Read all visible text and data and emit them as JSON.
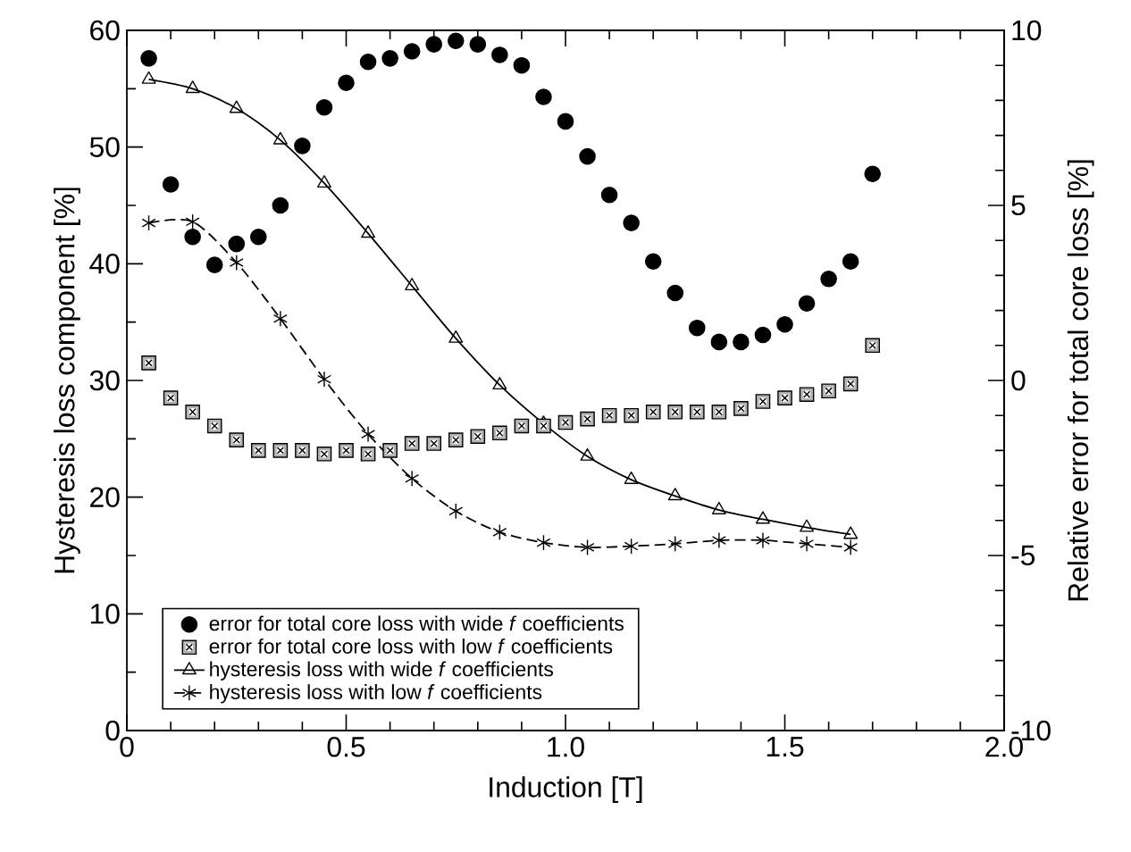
{
  "chart_data": {
    "type": "line",
    "xlabel": "Induction [T]",
    "ylabel": "Hysteresis loss component [%]",
    "y2label": "Relative error for total core loss [%]",
    "xlim": [
      0,
      2
    ],
    "xticks": [
      0,
      0.5,
      {
        "value": 1,
        "label": "1.0"
      },
      1.5,
      {
        "value": 2,
        "label": "2.0"
      }
    ],
    "ylim": [
      0,
      60
    ],
    "yticks": [
      0,
      10,
      20,
      30,
      40,
      50,
      60
    ],
    "y2lim": [
      -10,
      10
    ],
    "y2ticks": [
      -10,
      -5,
      0,
      5,
      10
    ],
    "legend": "bottom left",
    "series": [
      {
        "name": "error for total core loss with wide *f* coefficients",
        "type": "scatter",
        "axis": "y2",
        "marker": "circle",
        "color": "#000000",
        "x": [
          0.05,
          0.1,
          0.15,
          0.2,
          0.25,
          0.3,
          0.35,
          0.4,
          0.45,
          0.5,
          0.55,
          0.6,
          0.65,
          0.7,
          0.75,
          0.8,
          0.85,
          0.9,
          0.95,
          1.0,
          1.05,
          1.1,
          1.15,
          1.2,
          1.25,
          1.3,
          1.35,
          1.4,
          1.45,
          1.5,
          1.55,
          1.6,
          1.65,
          1.7
        ],
        "values": [
          9.2,
          5.6,
          4.1,
          3.3,
          3.9,
          4.1,
          5.0,
          6.7,
          7.8,
          8.5,
          9.1,
          9.2,
          9.4,
          9.6,
          9.7,
          9.6,
          9.3,
          9.0,
          8.1,
          7.4,
          6.4,
          5.3,
          4.5,
          3.4,
          2.5,
          1.5,
          1.1,
          1.1,
          1.3,
          1.6,
          2.2,
          2.9,
          3.4,
          5.9
        ]
      },
      {
        "name": "error for total core loss with low *f* coefficients",
        "type": "scatter",
        "axis": "y2",
        "marker": "square",
        "color": "#000000",
        "x": [
          0.05,
          0.1,
          0.15,
          0.2,
          0.25,
          0.3,
          0.35,
          0.4,
          0.45,
          0.5,
          0.55,
          0.6,
          0.65,
          0.7,
          0.75,
          0.8,
          0.85,
          0.9,
          0.95,
          1.0,
          1.05,
          1.1,
          1.15,
          1.2,
          1.25,
          1.3,
          1.35,
          1.4,
          1.45,
          1.5,
          1.55,
          1.6,
          1.65,
          1.7
        ],
        "values": [
          0.5,
          -0.5,
          -0.9,
          -1.3,
          -1.7,
          -2.0,
          -2.0,
          -2.0,
          -2.1,
          -2.0,
          -2.1,
          -2.0,
          -1.8,
          -1.8,
          -1.7,
          -1.6,
          -1.5,
          -1.3,
          -1.3,
          -1.2,
          -1.1,
          -1.0,
          -1.0,
          -0.9,
          -0.9,
          -0.9,
          -0.9,
          -0.8,
          -0.6,
          -0.5,
          -0.4,
          -0.3,
          -0.1,
          1.0
        ]
      },
      {
        "name": "hysteresis loss with wide *f* coefficients",
        "axis": "y",
        "marker": "triangle",
        "line_style": "solid",
        "color": "#000000",
        "x": [
          0.05,
          0.15,
          0.25,
          0.35,
          0.45,
          0.55,
          0.65,
          0.75,
          0.85,
          0.95,
          1.05,
          1.15,
          1.25,
          1.35,
          1.45,
          1.55,
          1.65
        ],
        "values": [
          55.8,
          55.0,
          53.3,
          50.6,
          46.9,
          42.6,
          38.1,
          33.6,
          29.6,
          26.3,
          23.5,
          21.5,
          20.1,
          18.9,
          18.1,
          17.4,
          16.8
        ]
      },
      {
        "name": "hysteresis loss with low *f* coefficients",
        "axis": "y",
        "marker": "cross",
        "line_style": "dashed",
        "color": "#000000",
        "x": [
          0.05,
          0.15,
          0.25,
          0.35,
          0.45,
          0.55,
          0.65,
          0.75,
          0.85,
          0.95,
          1.05,
          1.15,
          1.25,
          1.35,
          1.45,
          1.55,
          1.65
        ],
        "values": [
          43.5,
          43.6,
          40.1,
          35.3,
          30.1,
          25.4,
          21.6,
          18.8,
          17.0,
          16.1,
          15.7,
          15.8,
          16.0,
          16.3,
          16.3,
          16.0,
          15.7
        ]
      }
    ]
  }
}
